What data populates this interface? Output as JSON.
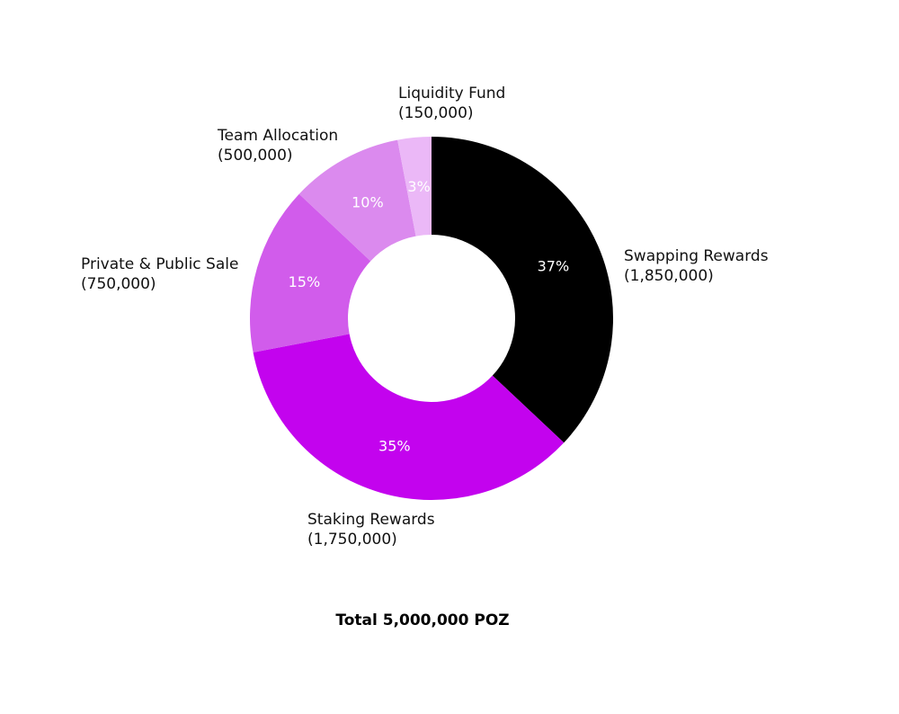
{
  "chart_data": {
    "type": "pie",
    "style": "donut",
    "total_label": "Total 5,000,000 POZ",
    "slices": [
      {
        "name": "Swapping Rewards",
        "value": 1850000,
        "value_label": "(1,850,000)",
        "percent_label": "37%",
        "color": "#000000"
      },
      {
        "name": "Staking Rewards",
        "value": 1750000,
        "value_label": "(1,750,000)",
        "percent_label": "35%",
        "color": "#c303ee"
      },
      {
        "name": "Private & Public Sale",
        "value": 750000,
        "value_label": "(750,000)",
        "percent_label": "15%",
        "color": "#d15ceb"
      },
      {
        "name": "Team Allocation",
        "value": 500000,
        "value_label": "(500,000)",
        "percent_label": "10%",
        "color": "#db8aee"
      },
      {
        "name": "Liquidity Fund",
        "value": 150000,
        "value_label": "(150,000)",
        "percent_label": "3%",
        "color": "#ebb8f7"
      }
    ]
  }
}
